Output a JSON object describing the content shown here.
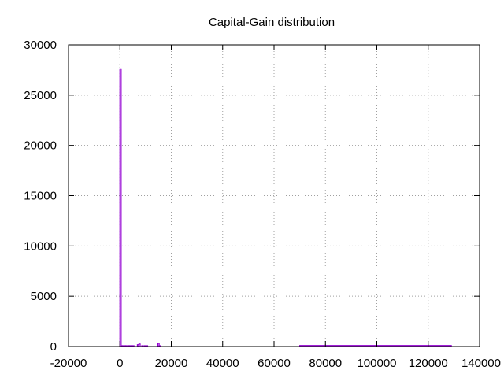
{
  "chart_data": {
    "type": "bar",
    "title": "Capital-Gain distribution",
    "xlabel": "",
    "ylabel": "",
    "xlim": [
      -20000,
      140000
    ],
    "ylim": [
      0,
      30000
    ],
    "xticks": [
      -20000,
      0,
      20000,
      40000,
      60000,
      80000,
      100000,
      120000,
      140000
    ],
    "yticks": [
      0,
      5000,
      10000,
      15000,
      20000,
      25000,
      30000
    ],
    "grid": true,
    "bar_color": "#9400d3",
    "series": [
      {
        "bins": [
          {
            "x0": 0,
            "x1": 100,
            "value": 27620
          },
          {
            "x0": 600,
            "x1": 900,
            "value": 30
          },
          {
            "x0": 1000,
            "x1": 1300,
            "value": 20
          },
          {
            "x0": 1800,
            "x1": 2100,
            "value": 40
          },
          {
            "x0": 2100,
            "x1": 2400,
            "value": 50
          },
          {
            "x0": 2900,
            "x1": 3200,
            "value": 60
          },
          {
            "x0": 3300,
            "x1": 3600,
            "value": 40
          },
          {
            "x0": 3800,
            "x1": 4100,
            "value": 70
          },
          {
            "x0": 4300,
            "x1": 4600,
            "value": 60
          },
          {
            "x0": 5000,
            "x1": 5300,
            "value": 80
          },
          {
            "x0": 6800,
            "x1": 7100,
            "value": 180
          },
          {
            "x0": 7400,
            "x1": 7800,
            "value": 250
          },
          {
            "x0": 8500,
            "x1": 8800,
            "value": 40
          },
          {
            "x0": 9400,
            "x1": 9700,
            "value": 30
          },
          {
            "x0": 10300,
            "x1": 10600,
            "value": 50
          },
          {
            "x0": 14800,
            "x1": 15100,
            "value": 320
          },
          {
            "x0": 15200,
            "x1": 15500,
            "value": 20
          },
          {
            "x0": 70000,
            "x1": 129000,
            "value": 100
          }
        ]
      }
    ]
  }
}
